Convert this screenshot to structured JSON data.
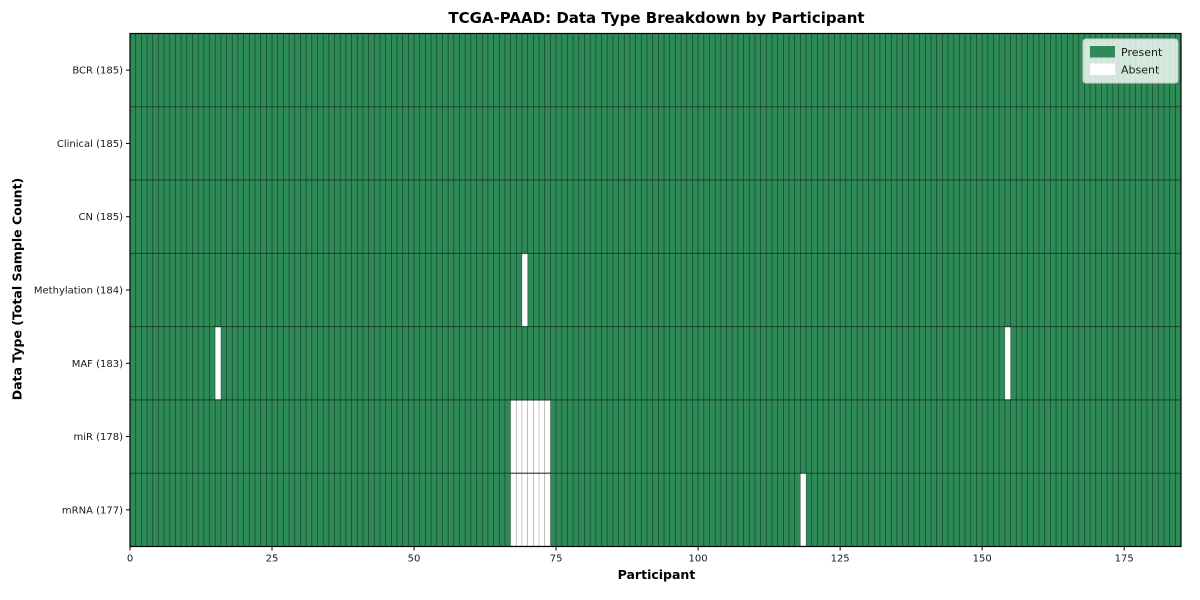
{
  "chart_data": {
    "type": "heatmap",
    "title": "TCGA-PAAD: Data Type Breakdown by Participant",
    "xlabel": "Participant",
    "ylabel": "Data Type (Total Sample Count)",
    "x_range": [
      0,
      185
    ],
    "n_participants": 185,
    "x_ticks": [
      0,
      25,
      50,
      75,
      100,
      125,
      150,
      175
    ],
    "grid": "per-cell vertical separators and row separators",
    "legend_position": "upper right",
    "rows": [
      {
        "label": "BCR (185)",
        "name": "BCR",
        "present_count": 185,
        "absent_participants": []
      },
      {
        "label": "Clinical (185)",
        "name": "Clinical",
        "present_count": 185,
        "absent_participants": []
      },
      {
        "label": "CN (185)",
        "name": "CN",
        "present_count": 185,
        "absent_participants": []
      },
      {
        "label": "Methylation (184)",
        "name": "Methylation",
        "present_count": 184,
        "absent_participants": [
          69
        ]
      },
      {
        "label": "MAF (183)",
        "name": "MAF",
        "present_count": 183,
        "absent_participants": [
          15,
          154
        ]
      },
      {
        "label": "miR (178)",
        "name": "miR",
        "present_count": 178,
        "absent_participants": [
          67,
          68,
          69,
          70,
          71,
          72,
          73
        ]
      },
      {
        "label": "mRNA (177)",
        "name": "mRNA",
        "present_count": 177,
        "absent_participants": [
          67,
          68,
          69,
          70,
          71,
          72,
          73,
          118
        ]
      }
    ],
    "legend": [
      {
        "label": "Present",
        "color": "#2e8b57"
      },
      {
        "label": "Absent",
        "color": "#ffffff"
      }
    ],
    "colors": {
      "present": "#2e8b57",
      "absent": "#ffffff",
      "cell_edge": "rgba(0,0,0,0.5)",
      "absent_edge": "rgba(0,0,0,0.18)",
      "row_separator": "rgba(0,0,0,0.55)",
      "axes_border": "#000000",
      "tick_text": "#1a1a1a",
      "legend_border": "#cccccc"
    }
  }
}
